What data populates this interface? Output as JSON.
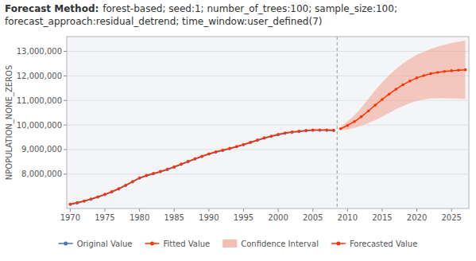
{
  "chart_data": {
    "type": "line",
    "title": "Forecast Method:",
    "subtitle": [
      "forest-based; seed:1; number_of_trees:100; sample_size:100;",
      "forecast_approach:residual_detrend; time_window:user_defined(7)"
    ],
    "y_label": "NPOPULATION_NONE_ZEROS",
    "xlim": [
      1969.5,
      2027.5
    ],
    "xticks": [
      1970,
      1975,
      1980,
      1985,
      1990,
      1995,
      2000,
      2005,
      2010,
      2015,
      2020,
      2025
    ],
    "ylim": [
      6600000,
      13600000
    ],
    "yticks": [
      {
        "value": 8000000,
        "label": "8,000,000"
      },
      {
        "value": 9000000,
        "label": "9,000,000"
      },
      {
        "value": 10000000,
        "label": "10,000,000"
      },
      {
        "value": 11000000,
        "label": "11,000,000"
      },
      {
        "value": 12000000,
        "label": "12,000,000"
      },
      {
        "value": 13000000,
        "label": "13,000,000"
      }
    ],
    "grid": true,
    "legend": "bottom",
    "vline_x": 2008.5,
    "series": [
      {
        "name": "Original Value",
        "type": "line",
        "color": "#4472C4",
        "marker": "circle",
        "x": [
          1970,
          1971,
          1972,
          1973,
          1974,
          1975,
          1976,
          1977,
          1978,
          1979,
          1980,
          1981,
          1982,
          1983,
          1984,
          1985,
          1986,
          1987,
          1988,
          1989,
          1990,
          1991,
          1992,
          1993,
          1994,
          1995,
          1996,
          1997,
          1998,
          1999,
          2000,
          2001,
          2002,
          2003,
          2004,
          2005,
          2006,
          2007,
          2008
        ],
        "values": [
          6760000,
          6820000,
          6890000,
          6970000,
          7060000,
          7160000,
          7270000,
          7390000,
          7530000,
          7680000,
          7830000,
          7930000,
          8010000,
          8090000,
          8180000,
          8280000,
          8390000,
          8500000,
          8610000,
          8710000,
          8810000,
          8890000,
          8960000,
          9030000,
          9110000,
          9190000,
          9280000,
          9370000,
          9460000,
          9530000,
          9600000,
          9660000,
          9700000,
          9730000,
          9760000,
          9780000,
          9780000,
          9780000,
          9770000
        ]
      },
      {
        "name": "Fitted Value",
        "type": "line",
        "color": "#FF3300",
        "marker": "circle",
        "x": [
          1970,
          1971,
          1972,
          1973,
          1974,
          1975,
          1976,
          1977,
          1978,
          1979,
          1980,
          1981,
          1982,
          1983,
          1984,
          1985,
          1986,
          1987,
          1988,
          1989,
          1990,
          1991,
          1992,
          1993,
          1994,
          1995,
          1996,
          1997,
          1998,
          1999,
          2000,
          2001,
          2002,
          2003,
          2004,
          2005,
          2006,
          2007,
          2008
        ],
        "values": [
          6780000,
          6840000,
          6910000,
          6990000,
          7080000,
          7180000,
          7290000,
          7410000,
          7550000,
          7700000,
          7850000,
          7950000,
          8030000,
          8110000,
          8200000,
          8300000,
          8410000,
          8520000,
          8630000,
          8730000,
          8830000,
          8910000,
          8980000,
          9050000,
          9130000,
          9210000,
          9300000,
          9390000,
          9480000,
          9550000,
          9620000,
          9680000,
          9720000,
          9750000,
          9780000,
          9800000,
          9800000,
          9800000,
          9790000
        ]
      },
      {
        "name": "Confidence Interval",
        "type": "area",
        "color": "#F4A090",
        "x": [
          2009,
          2010,
          2011,
          2012,
          2013,
          2014,
          2015,
          2016,
          2017,
          2018,
          2019,
          2020,
          2021,
          2022,
          2023,
          2024,
          2025,
          2026,
          2027
        ],
        "lower": [
          9790000,
          9820000,
          9880000,
          9970000,
          10080000,
          10200000,
          10340000,
          10490000,
          10640000,
          10770000,
          10890000,
          10980000,
          11040000,
          11080000,
          11090000,
          11090000,
          11080000,
          11070000,
          11060000
        ],
        "upper": [
          9910000,
          10140000,
          10400000,
          10710000,
          11060000,
          11420000,
          11740000,
          12030000,
          12280000,
          12510000,
          12690000,
          12860000,
          12980000,
          13100000,
          13190000,
          13270000,
          13340000,
          13390000,
          13440000
        ]
      },
      {
        "name": "Forecasted Value",
        "type": "line",
        "color": "#FF3300",
        "marker": "circle",
        "x": [
          2009,
          2010,
          2011,
          2012,
          2013,
          2014,
          2015,
          2016,
          2017,
          2018,
          2019,
          2020,
          2021,
          2022,
          2023,
          2024,
          2025,
          2026,
          2027
        ],
        "values": [
          9850000,
          9980000,
          10140000,
          10340000,
          10570000,
          10810000,
          11040000,
          11260000,
          11460000,
          11640000,
          11790000,
          11920000,
          12010000,
          12090000,
          12140000,
          12180000,
          12210000,
          12230000,
          12250000
        ]
      }
    ]
  }
}
